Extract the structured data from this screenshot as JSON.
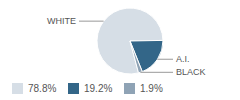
{
  "chart_data": {
    "type": "pie",
    "categories": [
      "WHITE",
      "A.I.",
      "BLACK"
    ],
    "values": [
      78.8,
      19.2,
      1.9
    ],
    "value_labels": [
      "78.8%",
      "19.2%",
      "1.9%"
    ],
    "colors": [
      "#d6dee6",
      "#336688",
      "#8fa3b5"
    ],
    "legend": "bottom"
  }
}
